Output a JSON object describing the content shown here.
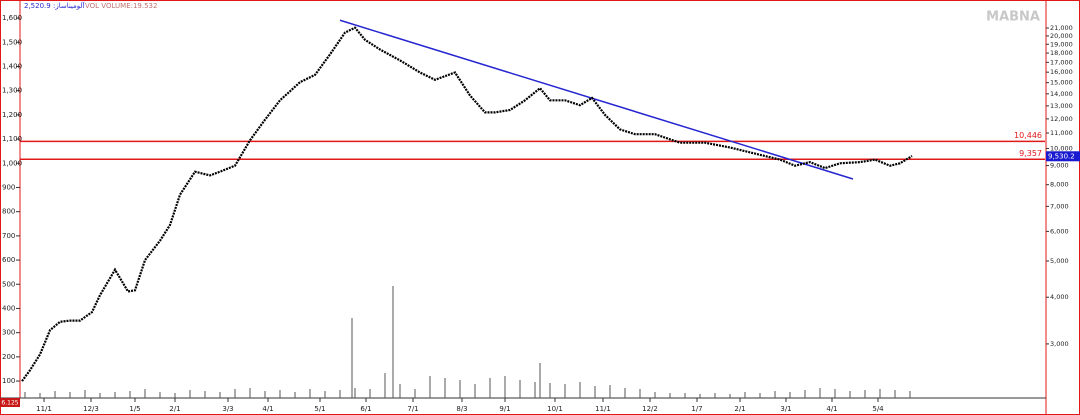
{
  "chart_data": {
    "type": "line",
    "title": "2,520.9 :آلومیناساز",
    "subtitle": "VOL  VOLUME:19.532",
    "watermark": "MABNA",
    "corner_label": "6.125",
    "xlim": [
      0,
      1025
    ],
    "xticks": [
      {
        "value": 24,
        "label": "11/1"
      },
      {
        "value": 71,
        "label": "12/3"
      },
      {
        "value": 115,
        "label": "1/5"
      },
      {
        "value": 155,
        "label": "2/1"
      },
      {
        "value": 208,
        "label": "3/3"
      },
      {
        "value": 248,
        "label": "4/1"
      },
      {
        "value": 300,
        "label": "5/1"
      },
      {
        "value": 346,
        "label": "6/1"
      },
      {
        "value": 393,
        "label": "7/1"
      },
      {
        "value": 442,
        "label": "8/3"
      },
      {
        "value": 485,
        "label": "9/1"
      },
      {
        "value": 535,
        "label": "10/1"
      },
      {
        "value": 583,
        "label": "11/1"
      },
      {
        "value": 630,
        "label": "12/2"
      },
      {
        "value": 677,
        "label": "1/7"
      },
      {
        "value": 720,
        "label": "2/1"
      },
      {
        "value": 766,
        "label": "3/1"
      },
      {
        "value": 812,
        "label": "4/1"
      },
      {
        "value": 858,
        "label": "5/4"
      }
    ],
    "ylim": [
      30,
      1654
    ],
    "yticks": [
      100,
      200,
      300,
      400,
      500,
      600,
      700,
      800,
      900,
      {
        "value": 1000,
        "label": "1,000"
      },
      {
        "value": 1100,
        "label": "1,100"
      },
      {
        "value": 1200,
        "label": "1,200"
      },
      {
        "value": 1300,
        "label": "1,300"
      },
      {
        "value": 1400,
        "label": "1,400"
      },
      {
        "value": 1500,
        "label": "1,500"
      },
      {
        "value": 1600,
        "label": "1,600"
      }
    ],
    "y2lim": [
      2150,
      24200
    ],
    "y2_log": true,
    "y2ticks": [
      {
        "value": 21000,
        "label": "21,000"
      },
      {
        "value": 20000,
        "label": "20,000"
      },
      {
        "value": 19000,
        "label": "19,000"
      },
      {
        "value": 18000,
        "label": "18,000"
      },
      {
        "value": 17000,
        "label": "17,000"
      },
      {
        "value": 16000,
        "label": "16,000"
      },
      {
        "value": 15000,
        "label": "15,000"
      },
      {
        "value": 14000,
        "label": "14,000"
      },
      {
        "value": 13000,
        "label": "13,000"
      },
      {
        "value": 12000,
        "label": "12,000"
      },
      {
        "value": 11000,
        "label": "11,000"
      },
      {
        "value": 10000,
        "label": "10,000"
      },
      {
        "value": 9000,
        "label": "9,000"
      },
      {
        "value": 8000,
        "label": "8,000"
      },
      {
        "value": 7000,
        "label": "7,000"
      },
      {
        "value": 6000,
        "label": "6,000"
      },
      {
        "value": 5000,
        "label": "5,000"
      },
      {
        "value": 4000,
        "label": "4,000"
      },
      {
        "value": 3000,
        "label": "3,000"
      }
    ],
    "series": [
      {
        "name": "price",
        "color": "#000000",
        "x": [
          2,
          10,
          20,
          30,
          40,
          50,
          60,
          72,
          80,
          95,
          108,
          115,
          125,
          140,
          150,
          160,
          175,
          190,
          200,
          215,
          230,
          245,
          260,
          280,
          295,
          310,
          325,
          335,
          345,
          360,
          380,
          400,
          415,
          435,
          450,
          465,
          475,
          490,
          505,
          520,
          530,
          545,
          560,
          572,
          585,
          600,
          615,
          635,
          660,
          685,
          710,
          740,
          760,
          775,
          790,
          805,
          820,
          840,
          855,
          870,
          880,
          892
        ],
        "values": [
          100,
          145,
          210,
          310,
          345,
          350,
          350,
          385,
          455,
          560,
          470,
          475,
          600,
          680,
          745,
          870,
          965,
          950,
          965,
          990,
          1095,
          1180,
          1260,
          1335,
          1365,
          1450,
          1540,
          1560,
          1510,
          1470,
          1425,
          1375,
          1345,
          1375,
          1280,
          1210,
          1210,
          1220,
          1260,
          1310,
          1260,
          1260,
          1240,
          1270,
          1200,
          1140,
          1120,
          1120,
          1085,
          1085,
          1065,
          1035,
          1015,
          990,
          1005,
          980,
          1000,
          1005,
          1015,
          990,
          1000,
          1030
        ]
      }
    ],
    "trendline": {
      "color": "#2626d0",
      "x": [
        320,
        833
      ],
      "values": [
        1591,
        935
      ]
    },
    "hlines": [
      {
        "value": 10446,
        "label": "10,446",
        "color": "#e01818"
      },
      {
        "value": 9357,
        "label": "9,357",
        "color": "#e01818"
      }
    ],
    "last_price": {
      "value": 9530.2,
      "label": "9,530.2",
      "color": "#1a1ad0"
    },
    "volume": {
      "color": "#555555",
      "ylim": [
        0,
        120
      ],
      "x": [
        5,
        20,
        35,
        50,
        65,
        80,
        95,
        110,
        125,
        140,
        155,
        170,
        185,
        200,
        215,
        230,
        245,
        260,
        275,
        290,
        305,
        320,
        332,
        335,
        350,
        365,
        373,
        380,
        395,
        410,
        425,
        440,
        455,
        470,
        485,
        500,
        515,
        520,
        530,
        545,
        560,
        575,
        590,
        605,
        620,
        635,
        650,
        665,
        680,
        695,
        710,
        725,
        740,
        755,
        770,
        785,
        800,
        815,
        830,
        845,
        860,
        875,
        890
      ],
      "values": [
        6,
        5,
        7,
        6,
        8,
        5,
        6,
        7,
        9,
        6,
        5,
        8,
        7,
        6,
        9,
        10,
        7,
        8,
        6,
        9,
        7,
        8,
        80,
        10,
        9,
        25,
        112,
        14,
        9,
        22,
        20,
        18,
        14,
        20,
        22,
        18,
        16,
        35,
        15,
        14,
        16,
        12,
        13,
        10,
        9,
        6,
        5,
        5,
        4,
        5,
        4,
        6,
        5,
        7,
        6,
        8,
        10,
        9,
        7,
        8,
        9,
        8,
        7
      ]
    }
  }
}
